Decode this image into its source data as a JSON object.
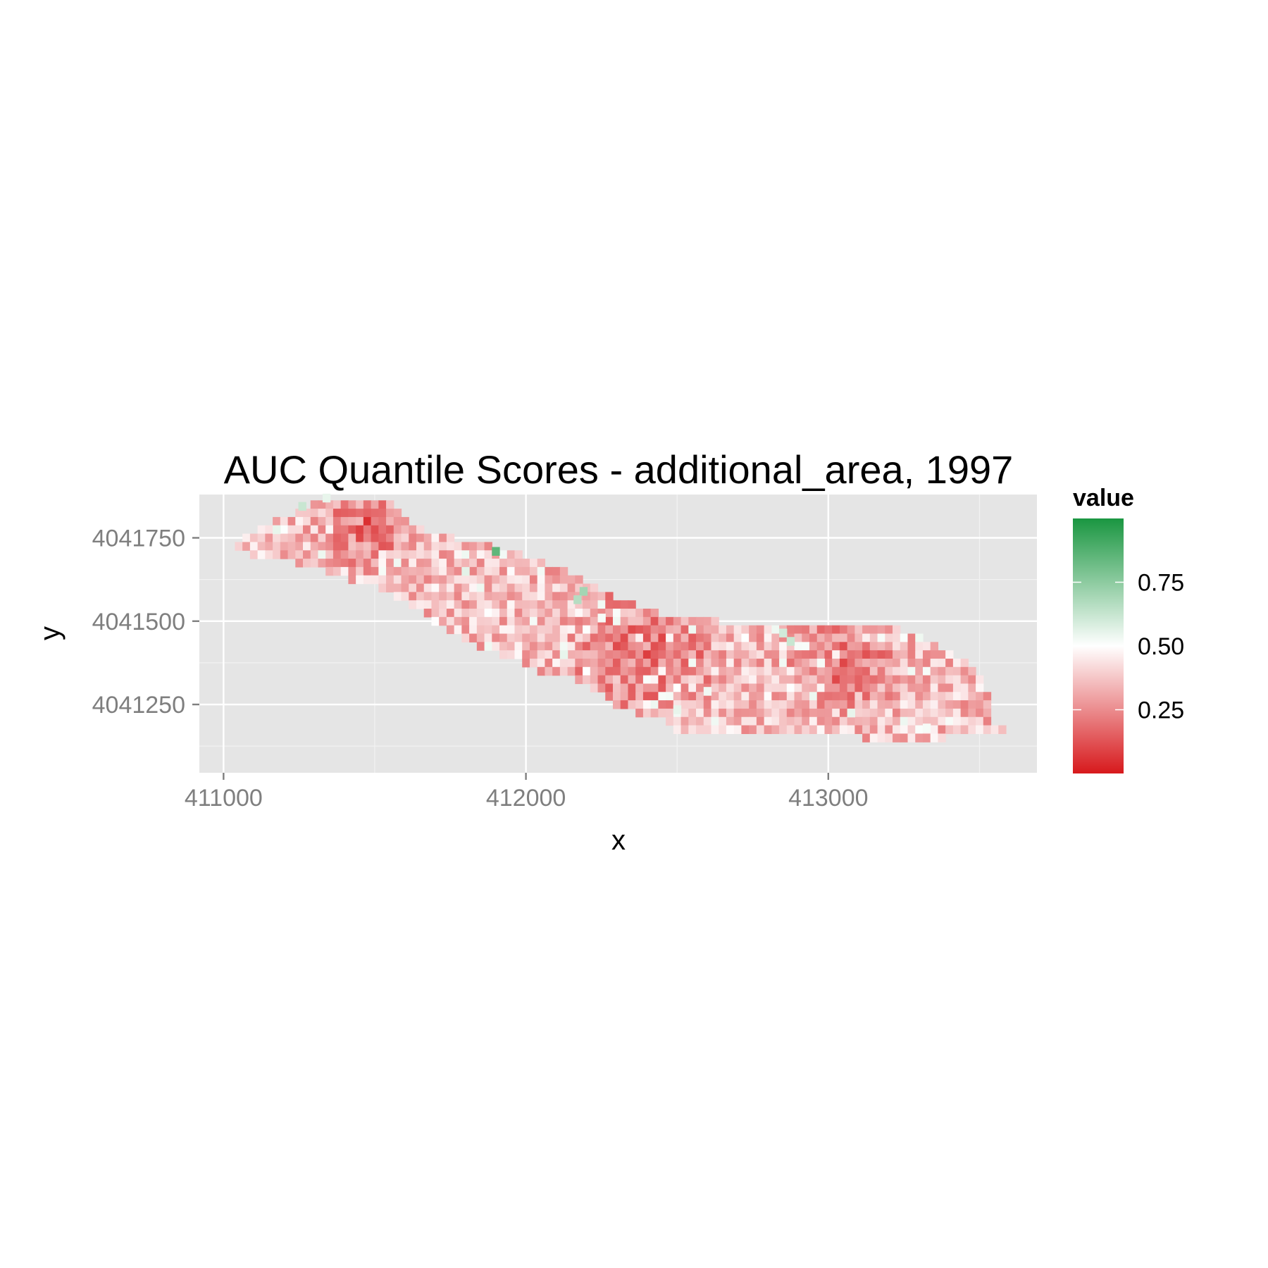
{
  "chart_data": {
    "type": "heatmap",
    "title": "AUC Quantile Scores - additional_area, 1997",
    "xlabel": "x",
    "ylabel": "y",
    "xlim": [
      410920,
      413690
    ],
    "ylim": [
      4041045,
      4041880
    ],
    "x_ticks": [
      411000,
      412000,
      413000
    ],
    "y_ticks": [
      4041250,
      4041500,
      4041750
    ],
    "x_tick_labels": [
      "411000",
      "412000",
      "413000"
    ],
    "y_tick_labels": [
      "4041250",
      "4041500",
      "4041750"
    ],
    "x_minor_gridlines": [
      411500,
      412500,
      413500
    ],
    "y_minor_gridlines": [
      4041125,
      4041375,
      4041625
    ],
    "grid": true,
    "panel_background": "#e5e5e5",
    "cell_size": 25,
    "color_scale": {
      "title": "value",
      "low": "#d7191c",
      "mid": "#ffffff",
      "high": "#1a9641",
      "midpoint": 0.5,
      "limits": [
        0,
        1
      ],
      "breaks": [
        0.25,
        0.5,
        0.75
      ],
      "break_labels": [
        "0.25",
        "0.50",
        "0.75"
      ]
    },
    "region_rows": [
      {
        "y": 4041850,
        "x_from": 411300,
        "x_to": 411550
      },
      {
        "y": 4041825,
        "x_from": 411250,
        "x_to": 411575
      },
      {
        "y": 4041800,
        "x_from": 411175,
        "x_to": 411600
      },
      {
        "y": 4041775,
        "x_from": 411125,
        "x_to": 411650
      },
      {
        "y": 4041750,
        "x_from": 411075,
        "x_to": 411750
      },
      {
        "y": 4041725,
        "x_from": 411050,
        "x_to": 411875
      },
      {
        "y": 4041700,
        "x_from": 411100,
        "x_to": 411975
      },
      {
        "y": 4041675,
        "x_from": 411250,
        "x_to": 412050
      },
      {
        "y": 4041650,
        "x_from": 411350,
        "x_to": 412125
      },
      {
        "y": 4041625,
        "x_from": 411425,
        "x_to": 412175
      },
      {
        "y": 4041600,
        "x_from": 411525,
        "x_to": 412225
      },
      {
        "y": 4041575,
        "x_from": 411575,
        "x_to": 412275
      },
      {
        "y": 4041550,
        "x_from": 411625,
        "x_to": 412350
      },
      {
        "y": 4041525,
        "x_from": 411675,
        "x_to": 412425
      },
      {
        "y": 4041500,
        "x_from": 411700,
        "x_to": 412625
      },
      {
        "y": 4041475,
        "x_from": 411750,
        "x_to": 413225
      },
      {
        "y": 4041450,
        "x_from": 411800,
        "x_to": 413300
      },
      {
        "y": 4041425,
        "x_from": 411850,
        "x_to": 413350
      },
      {
        "y": 4041400,
        "x_from": 411925,
        "x_to": 413400
      },
      {
        "y": 4041375,
        "x_from": 412000,
        "x_to": 413450
      },
      {
        "y": 4041350,
        "x_from": 412050,
        "x_to": 413475
      },
      {
        "y": 4041325,
        "x_from": 412175,
        "x_to": 413500
      },
      {
        "y": 4041300,
        "x_from": 412225,
        "x_to": 413500
      },
      {
        "y": 4041275,
        "x_from": 412275,
        "x_to": 413525
      },
      {
        "y": 4041250,
        "x_from": 412300,
        "x_to": 413525
      },
      {
        "y": 4041225,
        "x_from": 412375,
        "x_to": 413525
      },
      {
        "y": 4041200,
        "x_from": 412475,
        "x_to": 413525
      },
      {
        "y": 4041175,
        "x_from": 412500,
        "x_to": 413575
      },
      {
        "y": 4041150,
        "x_from": 413125,
        "x_to": 413375
      }
    ],
    "highlight_cells": [
      {
        "x": 411900,
        "y": 4041710,
        "value": 0.85
      },
      {
        "x": 412190,
        "y": 4041590,
        "value": 0.7
      },
      {
        "x": 412170,
        "y": 4041565,
        "value": 0.66
      },
      {
        "x": 412875,
        "y": 4041440,
        "value": 0.62
      },
      {
        "x": 412850,
        "y": 4041465,
        "value": 0.6
      },
      {
        "x": 411260,
        "y": 4041845,
        "value": 0.62
      },
      {
        "x": 411340,
        "y": 4041870,
        "value": 0.55
      },
      {
        "x": 411175,
        "y": 4041775,
        "value": 0.55
      },
      {
        "x": 412500,
        "y": 4041235,
        "value": 0.55
      },
      {
        "x": 412600,
        "y": 4041290,
        "value": 0.53
      },
      {
        "x": 412125,
        "y": 4041400,
        "value": 0.55
      },
      {
        "x": 411800,
        "y": 4041650,
        "value": 0.56
      },
      {
        "x": 412250,
        "y": 4041510,
        "value": 0.52
      },
      {
        "x": 413325,
        "y": 4041180,
        "value": 0.52
      },
      {
        "x": 412975,
        "y": 4041375,
        "value": 0.52
      },
      {
        "x": 413075,
        "y": 4041225,
        "value": 0.55
      }
    ],
    "low_value_zones": [
      {
        "x": 411475,
        "y": 4041790,
        "radius": 175
      },
      {
        "x": 412400,
        "y": 4041400,
        "radius": 275
      },
      {
        "x": 413050,
        "y": 4041380,
        "radius": 200
      }
    ]
  }
}
